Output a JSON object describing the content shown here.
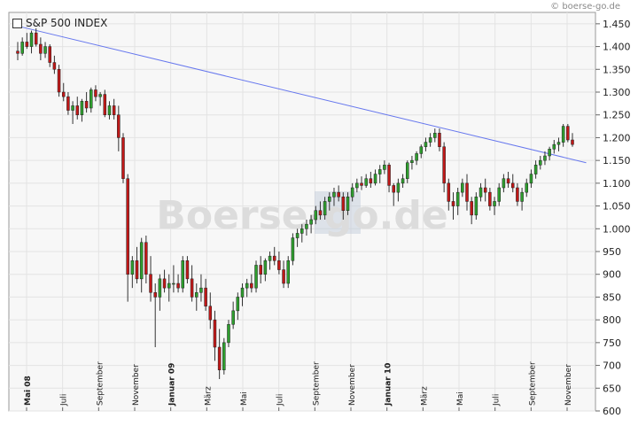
{
  "chart_data": {
    "type": "candlestick",
    "title": "S&P 500 INDEX",
    "source_label": "© boerse-go.de",
    "watermark": "Boerse-go.de",
    "ylim": [
      600,
      1475
    ],
    "y_ticks": [
      "1.450",
      "1.400",
      "1.350",
      "1.300",
      "1.250",
      "1.200",
      "1.150",
      "1.100",
      "1.050",
      "1.000",
      "950",
      "900",
      "850",
      "800",
      "750",
      "700",
      "650",
      "600"
    ],
    "x_ticks": [
      {
        "label": "Mai 08",
        "bold": true
      },
      {
        "label": "Juli",
        "bold": false
      },
      {
        "label": "September",
        "bold": false
      },
      {
        "label": "November",
        "bold": false
      },
      {
        "label": "Januar 09",
        "bold": true
      },
      {
        "label": "März",
        "bold": false
      },
      {
        "label": "Mai",
        "bold": false
      },
      {
        "label": "Juli",
        "bold": false
      },
      {
        "label": "September",
        "bold": false
      },
      {
        "label": "November",
        "bold": false
      },
      {
        "label": "Januar 10",
        "bold": true
      },
      {
        "label": "März",
        "bold": false
      },
      {
        "label": "Mai",
        "bold": false
      },
      {
        "label": "Juli",
        "bold": false
      },
      {
        "label": "September",
        "bold": false
      },
      {
        "label": "November",
        "bold": false
      }
    ],
    "trendline": {
      "start": [
        0,
        1445
      ],
      "end": [
        124,
        1145
      ]
    },
    "grid": true,
    "colors": {
      "up": "#2e9e2e",
      "down": "#c01818",
      "trendline": "#6677ee",
      "grid": "#e3e3e3",
      "background": "#f7f7f7",
      "axis": "#666666"
    },
    "candles": [
      [
        1390,
        1410,
        1370,
        1385
      ],
      [
        1385,
        1420,
        1380,
        1410
      ],
      [
        1410,
        1430,
        1395,
        1400
      ],
      [
        1400,
        1435,
        1385,
        1430
      ],
      [
        1430,
        1440,
        1400,
        1405
      ],
      [
        1405,
        1420,
        1370,
        1385
      ],
      [
        1385,
        1410,
        1375,
        1400
      ],
      [
        1400,
        1405,
        1355,
        1365
      ],
      [
        1365,
        1380,
        1340,
        1350
      ],
      [
        1350,
        1360,
        1290,
        1300
      ],
      [
        1300,
        1320,
        1280,
        1290
      ],
      [
        1290,
        1300,
        1250,
        1260
      ],
      [
        1260,
        1280,
        1230,
        1270
      ],
      [
        1270,
        1290,
        1240,
        1250
      ],
      [
        1250,
        1285,
        1235,
        1280
      ],
      [
        1280,
        1300,
        1255,
        1265
      ],
      [
        1265,
        1310,
        1255,
        1305
      ],
      [
        1305,
        1315,
        1280,
        1290
      ],
      [
        1290,
        1300,
        1270,
        1295
      ],
      [
        1295,
        1305,
        1245,
        1250
      ],
      [
        1250,
        1280,
        1240,
        1270
      ],
      [
        1270,
        1285,
        1240,
        1250
      ],
      [
        1250,
        1270,
        1170,
        1200
      ],
      [
        1200,
        1210,
        1100,
        1110
      ],
      [
        1110,
        1120,
        840,
        900
      ],
      [
        900,
        940,
        870,
        930
      ],
      [
        930,
        960,
        880,
        890
      ],
      [
        890,
        980,
        860,
        970
      ],
      [
        970,
        985,
        880,
        900
      ],
      [
        900,
        940,
        840,
        860
      ],
      [
        860,
        880,
        740,
        850
      ],
      [
        850,
        900,
        820,
        890
      ],
      [
        890,
        910,
        860,
        870
      ],
      [
        870,
        900,
        840,
        880
      ],
      [
        880,
        920,
        860,
        880
      ],
      [
        880,
        900,
        860,
        870
      ],
      [
        870,
        940,
        860,
        930
      ],
      [
        930,
        940,
        880,
        890
      ],
      [
        890,
        920,
        840,
        850
      ],
      [
        850,
        880,
        820,
        860
      ],
      [
        860,
        900,
        840,
        870
      ],
      [
        870,
        890,
        820,
        830
      ],
      [
        830,
        860,
        780,
        800
      ],
      [
        800,
        820,
        710,
        740
      ],
      [
        740,
        780,
        670,
        690
      ],
      [
        690,
        760,
        680,
        750
      ],
      [
        750,
        800,
        740,
        790
      ],
      [
        790,
        840,
        780,
        820
      ],
      [
        820,
        860,
        800,
        850
      ],
      [
        850,
        880,
        830,
        870
      ],
      [
        870,
        890,
        850,
        880
      ],
      [
        880,
        900,
        860,
        870
      ],
      [
        870,
        930,
        860,
        920
      ],
      [
        920,
        940,
        880,
        900
      ],
      [
        900,
        935,
        885,
        930
      ],
      [
        930,
        950,
        910,
        940
      ],
      [
        940,
        960,
        920,
        930
      ],
      [
        930,
        950,
        900,
        910
      ],
      [
        910,
        930,
        870,
        880
      ],
      [
        880,
        940,
        870,
        930
      ],
      [
        930,
        990,
        920,
        980
      ],
      [
        980,
        1000,
        960,
        990
      ],
      [
        990,
        1010,
        970,
        1000
      ],
      [
        1000,
        1020,
        985,
        1010
      ],
      [
        1010,
        1030,
        990,
        1020
      ],
      [
        1020,
        1050,
        1010,
        1040
      ],
      [
        1040,
        1060,
        1020,
        1030
      ],
      [
        1030,
        1070,
        1020,
        1060
      ],
      [
        1060,
        1080,
        1040,
        1070
      ],
      [
        1070,
        1090,
        1050,
        1080
      ],
      [
        1080,
        1095,
        1060,
        1070
      ],
      [
        1070,
        1080,
        1020,
        1040
      ],
      [
        1040,
        1080,
        1030,
        1070
      ],
      [
        1070,
        1100,
        1060,
        1090
      ],
      [
        1090,
        1110,
        1080,
        1100
      ],
      [
        1100,
        1115,
        1085,
        1095
      ],
      [
        1095,
        1120,
        1090,
        1110
      ],
      [
        1110,
        1125,
        1090,
        1100
      ],
      [
        1100,
        1130,
        1095,
        1120
      ],
      [
        1120,
        1140,
        1100,
        1130
      ],
      [
        1130,
        1150,
        1120,
        1140
      ],
      [
        1140,
        1145,
        1080,
        1095
      ],
      [
        1095,
        1100,
        1050,
        1080
      ],
      [
        1080,
        1110,
        1060,
        1100
      ],
      [
        1100,
        1120,
        1090,
        1110
      ],
      [
        1110,
        1150,
        1100,
        1145
      ],
      [
        1145,
        1160,
        1130,
        1150
      ],
      [
        1150,
        1170,
        1140,
        1165
      ],
      [
        1165,
        1185,
        1155,
        1180
      ],
      [
        1180,
        1200,
        1170,
        1190
      ],
      [
        1190,
        1210,
        1180,
        1200
      ],
      [
        1200,
        1220,
        1190,
        1210
      ],
      [
        1210,
        1220,
        1170,
        1180
      ],
      [
        1180,
        1190,
        1080,
        1100
      ],
      [
        1100,
        1110,
        1040,
        1060
      ],
      [
        1060,
        1080,
        1020,
        1050
      ],
      [
        1050,
        1090,
        1030,
        1080
      ],
      [
        1080,
        1110,
        1070,
        1100
      ],
      [
        1100,
        1120,
        1040,
        1060
      ],
      [
        1060,
        1070,
        1010,
        1030
      ],
      [
        1030,
        1080,
        1020,
        1070
      ],
      [
        1070,
        1100,
        1060,
        1090
      ],
      [
        1090,
        1110,
        1060,
        1080
      ],
      [
        1080,
        1090,
        1040,
        1050
      ],
      [
        1050,
        1070,
        1030,
        1060
      ],
      [
        1060,
        1100,
        1050,
        1090
      ],
      [
        1090,
        1120,
        1080,
        1110
      ],
      [
        1110,
        1125,
        1090,
        1100
      ],
      [
        1100,
        1120,
        1080,
        1090
      ],
      [
        1090,
        1100,
        1050,
        1060
      ],
      [
        1060,
        1090,
        1040,
        1080
      ],
      [
        1080,
        1110,
        1070,
        1100
      ],
      [
        1100,
        1130,
        1090,
        1120
      ],
      [
        1120,
        1150,
        1110,
        1140
      ],
      [
        1140,
        1160,
        1130,
        1150
      ],
      [
        1150,
        1170,
        1140,
        1160
      ],
      [
        1160,
        1180,
        1150,
        1175
      ],
      [
        1175,
        1195,
        1165,
        1185
      ],
      [
        1185,
        1200,
        1170,
        1190
      ],
      [
        1190,
        1230,
        1180,
        1225
      ],
      [
        1225,
        1230,
        1190,
        1195
      ],
      [
        1195,
        1210,
        1180,
        1185
      ]
    ]
  }
}
